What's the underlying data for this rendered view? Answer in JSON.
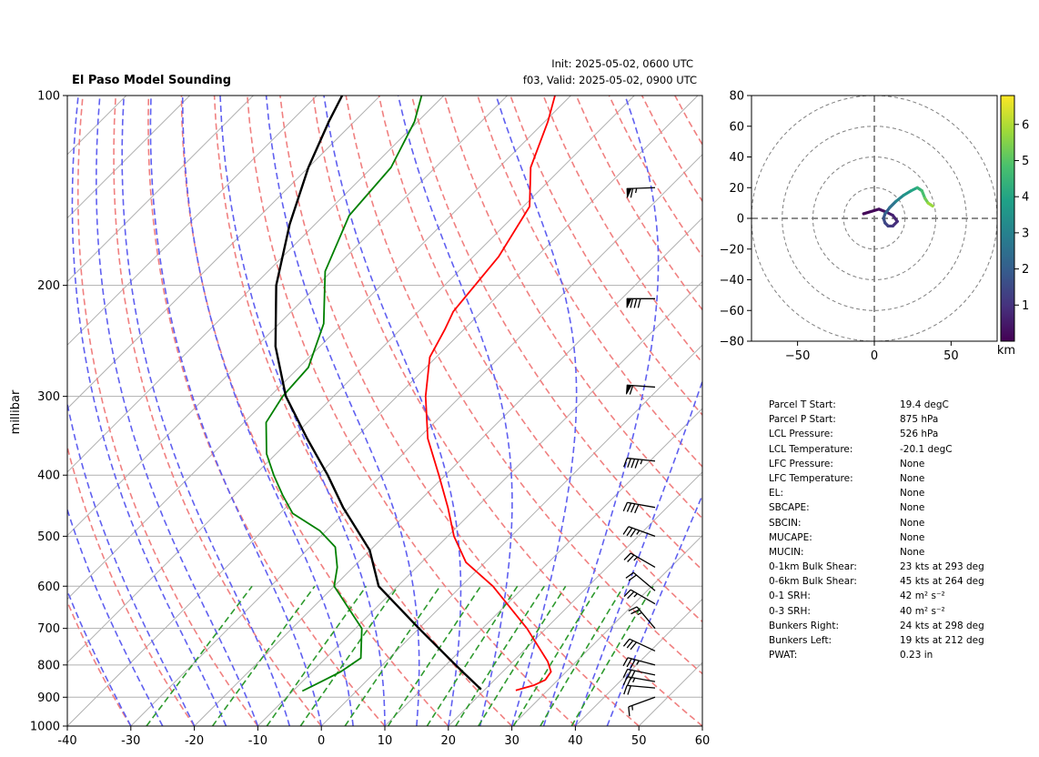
{
  "title": "El Paso Model Sounding",
  "init_text": "Init: 2025-05-02, 0600 UTC",
  "valid_text": "f03, Valid: 2025-05-02, 0900 UTC",
  "chart_data": [
    {
      "type": "skew-t",
      "ylabel": "millibar",
      "xlabel": "",
      "pressure_axis": "log",
      "ylim": [
        1000,
        100
      ],
      "xlim": [
        -40,
        60
      ],
      "x_ticks": [
        -40,
        -30,
        -20,
        -10,
        0,
        10,
        20,
        30,
        40,
        50,
        60
      ],
      "y_ticks": [
        100,
        200,
        300,
        400,
        500,
        600,
        700,
        800,
        900,
        1000
      ],
      "grid": true,
      "colors": {
        "temperature": "#ff0000",
        "dewpoint": "#008000",
        "parcel": "#000000",
        "dry_adiabats": "#f08080",
        "moist_adiabats": "#6060f0",
        "mixing_ratio": "#2e9a2e",
        "isotherms": "#b0b0b0",
        "barbs": "#000000"
      },
      "series": [
        {
          "key": "temperature",
          "points": [
            [
              878,
              25.0
            ],
            [
              862,
              27.0
            ],
            [
              845,
              28.0
            ],
            [
              820,
              27.6
            ],
            [
              790,
              25.5
            ],
            [
              700,
              17.0
            ],
            [
              600,
              5.0
            ],
            [
              550,
              -3.0
            ],
            [
              500,
              -9.0
            ],
            [
              450,
              -14.5
            ],
            [
              400,
              -21.0
            ],
            [
              350,
              -28.5
            ],
            [
              300,
              -35.5
            ],
            [
              260,
              -41.0
            ],
            [
              235,
              -43.0
            ],
            [
              220,
              -44.5
            ],
            [
              180,
              -46.0
            ],
            [
              150,
              -49.0
            ],
            [
              130,
              -55.0
            ],
            [
              110,
              -59.5
            ],
            [
              100,
              -62.5
            ]
          ]
        },
        {
          "key": "dewpoint",
          "points": [
            [
              880,
              -8.5
            ],
            [
              850,
              -7.0
            ],
            [
              820,
              -5.5
            ],
            [
              780,
              -4.5
            ],
            [
              700,
              -9.0
            ],
            [
              600,
              -20.0
            ],
            [
              560,
              -22.5
            ],
            [
              520,
              -26.0
            ],
            [
              490,
              -31.0
            ],
            [
              460,
              -38.0
            ],
            [
              430,
              -42.5
            ],
            [
              400,
              -47.0
            ],
            [
              370,
              -51.5
            ],
            [
              330,
              -56.5
            ],
            [
              300,
              -58.0
            ],
            [
              270,
              -58.5
            ],
            [
              230,
              -63.0
            ],
            [
              190,
              -71.0
            ],
            [
              155,
              -76.0
            ],
            [
              130,
              -77.0
            ],
            [
              110,
              -80.5
            ],
            [
              100,
              -83.5
            ]
          ]
        },
        {
          "key": "parcel",
          "points": [
            [
              875,
              19.4
            ],
            [
              800,
              11.5
            ],
            [
              700,
              0.0
            ],
            [
              600,
              -13.0
            ],
            [
              526,
              -20.1
            ],
            [
              450,
              -31.0
            ],
            [
              400,
              -38.5
            ],
            [
              350,
              -47.5
            ],
            [
              300,
              -57.5
            ],
            [
              250,
              -67.0
            ],
            [
              200,
              -76.5
            ],
            [
              160,
              -84.0
            ],
            [
              130,
              -90.0
            ],
            [
              110,
              -94.0
            ],
            [
              100,
              -96.0
            ]
          ]
        }
      ],
      "wind_barbs": [
        {
          "p": 900,
          "speed": 15,
          "dir": 250
        },
        {
          "p": 870,
          "speed": 20,
          "dir": 275
        },
        {
          "p": 850,
          "speed": 25,
          "dir": 280
        },
        {
          "p": 830,
          "speed": 30,
          "dir": 282
        },
        {
          "p": 800,
          "speed": 35,
          "dir": 285
        },
        {
          "p": 760,
          "speed": 30,
          "dir": 295
        },
        {
          "p": 700,
          "speed": 25,
          "dir": 320
        },
        {
          "p": 640,
          "speed": 25,
          "dir": 300
        },
        {
          "p": 610,
          "speed": 20,
          "dir": 310
        },
        {
          "p": 560,
          "speed": 25,
          "dir": 300
        },
        {
          "p": 500,
          "speed": 35,
          "dir": 290
        },
        {
          "p": 450,
          "speed": 40,
          "dir": 280
        },
        {
          "p": 380,
          "speed": 45,
          "dir": 276
        },
        {
          "p": 290,
          "speed": 60,
          "dir": 274
        },
        {
          "p": 210,
          "speed": 80,
          "dir": 270
        },
        {
          "p": 140,
          "speed": 65,
          "dir": 268
        }
      ]
    },
    {
      "type": "hodograph",
      "xlim": [
        -80,
        80
      ],
      "ylim": [
        -80,
        80
      ],
      "x_ticks": [
        -50,
        0,
        50
      ],
      "y_ticks": [
        -80,
        -60,
        -40,
        -20,
        0,
        20,
        40,
        60,
        80
      ],
      "rings": [
        20,
        40,
        60,
        80
      ],
      "colorbar": {
        "label": "km",
        "range": [
          0,
          6.8
        ],
        "ticks": [
          1,
          2,
          3,
          4,
          5,
          6
        ],
        "stops": [
          "#440154",
          "#46327e",
          "#365c8d",
          "#277f8e",
          "#1fa187",
          "#4ac16d",
          "#a0da39",
          "#fde725"
        ]
      },
      "trace": [
        {
          "u": -7,
          "v": 3,
          "z": 0.05
        },
        {
          "u": 3,
          "v": 6,
          "z": 0.2
        },
        {
          "u": 8,
          "v": 4,
          "z": 0.4
        },
        {
          "u": 12,
          "v": 2,
          "z": 0.6
        },
        {
          "u": 15,
          "v": -2,
          "z": 0.8
        },
        {
          "u": 12,
          "v": -5,
          "z": 1.0
        },
        {
          "u": 9,
          "v": -5,
          "z": 1.2
        },
        {
          "u": 7,
          "v": -3,
          "z": 1.4
        },
        {
          "u": 6,
          "v": 0,
          "z": 1.6
        },
        {
          "u": 7,
          "v": 3,
          "z": 1.9
        },
        {
          "u": 10,
          "v": 7,
          "z": 2.3
        },
        {
          "u": 14,
          "v": 11,
          "z": 2.8
        },
        {
          "u": 19,
          "v": 15,
          "z": 3.3
        },
        {
          "u": 24,
          "v": 18,
          "z": 3.8
        },
        {
          "u": 28,
          "v": 20,
          "z": 4.2
        },
        {
          "u": 31,
          "v": 18,
          "z": 4.6
        },
        {
          "u": 33,
          "v": 13,
          "z": 5.0
        },
        {
          "u": 35,
          "v": 10,
          "z": 5.5
        },
        {
          "u": 38,
          "v": 8,
          "z": 6.0
        }
      ]
    }
  ],
  "parameters": [
    {
      "label": "Parcel T Start:",
      "value": "19.4 degC"
    },
    {
      "label": "Parcel P Start:",
      "value": "875 hPa"
    },
    {
      "label": "LCL Pressure:",
      "value": "526 hPa"
    },
    {
      "label": "LCL Temperature:",
      "value": "-20.1 degC"
    },
    {
      "label": "LFC Pressure:",
      "value": "None"
    },
    {
      "label": "LFC Temperature:",
      "value": "None"
    },
    {
      "label": "EL:",
      "value": "None"
    },
    {
      "label": "SBCAPE:",
      "value": "None"
    },
    {
      "label": "SBCIN:",
      "value": "None"
    },
    {
      "label": "MUCAPE:",
      "value": "None"
    },
    {
      "label": "MUCIN:",
      "value": "None"
    },
    {
      "label": "0-1km Bulk Shear:",
      "value": "23 kts at 293 deg"
    },
    {
      "label": "0-6km Bulk Shear:",
      "value": "45 kts at 264 deg"
    },
    {
      "label": "0-1 SRH:",
      "value": "42 m² s⁻²"
    },
    {
      "label": "0-3 SRH:",
      "value": "40 m² s⁻²"
    },
    {
      "label": "Bunkers Right:",
      "value": "24 kts at 298 deg"
    },
    {
      "label": "Bunkers Left:",
      "value": "19 kts at 212 deg"
    },
    {
      "label": "PWAT:",
      "value": "0.23 in"
    }
  ]
}
